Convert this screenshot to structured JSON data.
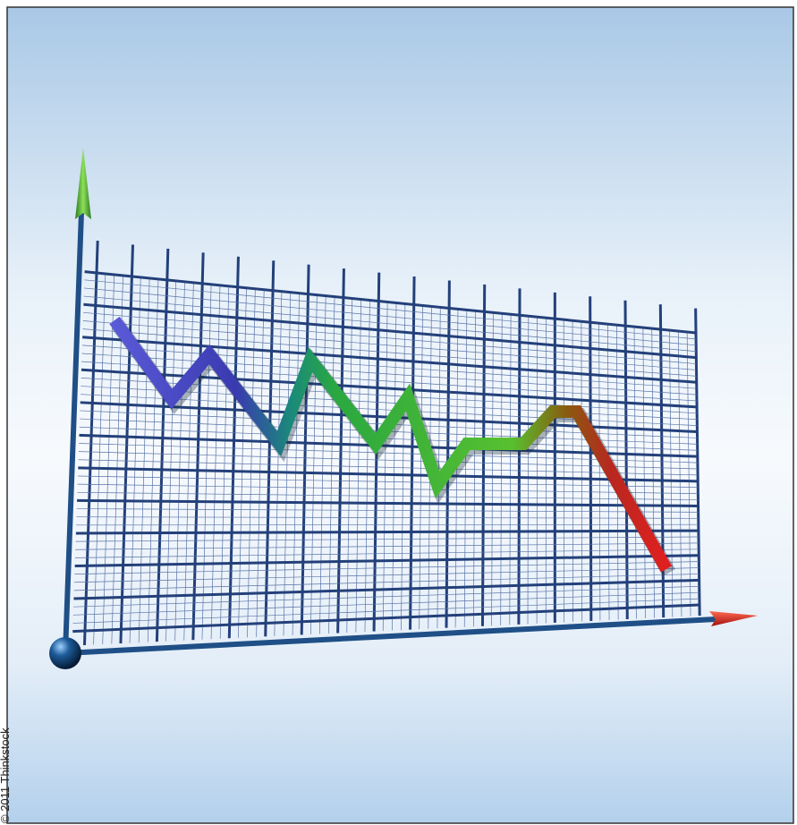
{
  "credit": "© 2011 Thinkstock"
}
